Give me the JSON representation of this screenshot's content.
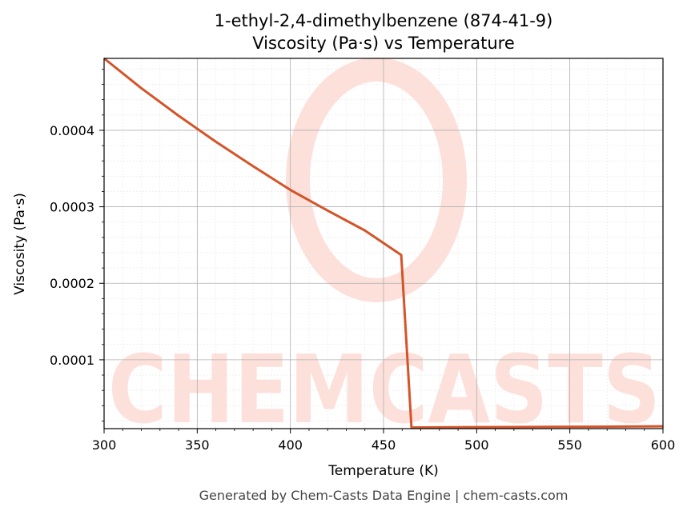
{
  "chart_data": {
    "type": "line",
    "title_line1": "1-ethyl-2,4-dimethylbenzene (874-41-9)",
    "title_line2": "Viscosity (Pa·s) vs Temperature",
    "xlabel": "Temperature (K)",
    "ylabel": "Viscosity (Pa·s)",
    "xlim": [
      300,
      600
    ],
    "ylim": [
      1e-05,
      0.000494
    ],
    "x_ticks": [
      300,
      350,
      400,
      450,
      500,
      550,
      600
    ],
    "x_tick_labels": [
      "300",
      "350",
      "400",
      "450",
      "500",
      "550",
      "600"
    ],
    "y_ticks": [
      0.0001,
      0.0002,
      0.0003,
      0.0004
    ],
    "y_tick_labels": [
      "0.0001",
      "0.0002",
      "0.0003",
      "0.0004"
    ],
    "grid": true,
    "line_color": "#d4542a",
    "series": [
      {
        "x": [
          300,
          320,
          340,
          360,
          380,
          400,
          420,
          440,
          459.5,
          465,
          480,
          500,
          520,
          540,
          560,
          580,
          600
        ],
        "y": [
          0.000494,
          0.000455,
          0.000419,
          0.000385,
          0.000353,
          0.000322,
          0.000295,
          0.000269,
          0.000237,
          1.15e-05,
          1.17e-05,
          1.19e-05,
          1.21e-05,
          1.23e-05,
          1.25e-05,
          1.27e-05,
          1.3e-05
        ]
      }
    ]
  },
  "watermark": {
    "text": "CHEMCASTS",
    "color": "#fde0da"
  },
  "footer": {
    "text": "Generated by Chem-Casts Data Engine | chem-casts.com"
  }
}
